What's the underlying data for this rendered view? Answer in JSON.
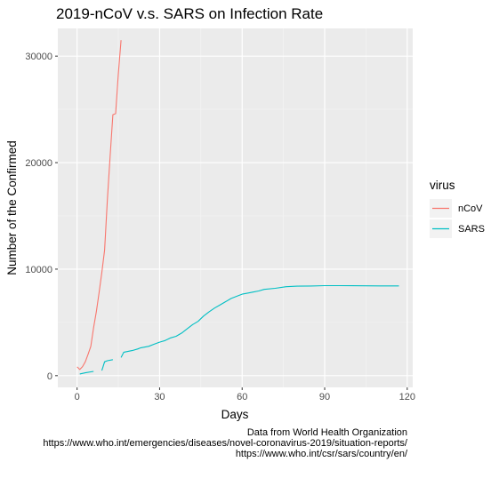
{
  "chart_data": {
    "type": "line",
    "title": "2019-nCoV v.s. SARS on Infection Rate",
    "xlabel": "Days",
    "ylabel": "Number of the Confirmed",
    "xlim": [
      -7,
      122
    ],
    "ylim": [
      -1100,
      32600
    ],
    "xticks": [
      0,
      30,
      60,
      90,
      120
    ],
    "yticks": [
      0,
      10000,
      20000,
      30000
    ],
    "grid": true,
    "legend": {
      "title": "virus",
      "position": "right"
    },
    "series": [
      {
        "name": "nCoV",
        "color": "#F8766D",
        "segments": [
          [
            [
              0,
              830
            ],
            [
              1,
              580
            ],
            [
              2,
              850
            ],
            [
              3,
              1300
            ],
            [
              4,
              2000
            ],
            [
              5,
              2750
            ],
            [
              6,
              4500
            ],
            [
              7,
              6000
            ],
            [
              8,
              7800
            ],
            [
              9,
              9700
            ],
            [
              10,
              11800
            ],
            [
              11,
              16500
            ],
            [
              12,
              20600
            ],
            [
              13,
              24500
            ],
            [
              14,
              24600
            ],
            [
              15,
              28300
            ],
            [
              16,
              31500
            ]
          ]
        ]
      },
      {
        "name": "SARS",
        "color": "#00BFC4",
        "segments": [
          [
            [
              1,
              160
            ],
            [
              3,
              270
            ],
            [
              6,
              400
            ]
          ],
          [
            [
              9,
              480
            ],
            [
              10,
              1300
            ],
            [
              11,
              1400
            ],
            [
              13,
              1500
            ]
          ],
          [
            [
              16,
              1700
            ],
            [
              17,
              2200
            ],
            [
              20,
              2350
            ],
            [
              22,
              2500
            ],
            [
              23,
              2600
            ],
            [
              26,
              2750
            ],
            [
              28,
              2950
            ],
            [
              30,
              3150
            ],
            [
              32,
              3300
            ],
            [
              34,
              3550
            ],
            [
              36,
              3700
            ],
            [
              38,
              4000
            ],
            [
              40,
              4400
            ],
            [
              42,
              4800
            ],
            [
              44,
              5100
            ],
            [
              46,
              5600
            ],
            [
              48,
              6000
            ],
            [
              50,
              6350
            ],
            [
              52,
              6650
            ],
            [
              54,
              6950
            ],
            [
              56,
              7250
            ],
            [
              58,
              7450
            ],
            [
              60,
              7650
            ],
            [
              62,
              7750
            ],
            [
              64,
              7850
            ],
            [
              66,
              7950
            ],
            [
              68,
              8100
            ],
            [
              72,
              8200
            ],
            [
              76,
              8350
            ],
            [
              80,
              8400
            ],
            [
              85,
              8420
            ],
            [
              90,
              8450
            ],
            [
              95,
              8450
            ],
            [
              100,
              8440
            ],
            [
              110,
              8430
            ],
            [
              117,
              8430
            ]
          ]
        ]
      }
    ],
    "caption": [
      "Data from World Health Organization",
      "https://www.who.int/emergencies/diseases/novel-coronavirus-2019/situation-reports/",
      "https://www.who.int/csr/sars/country/en/"
    ]
  }
}
